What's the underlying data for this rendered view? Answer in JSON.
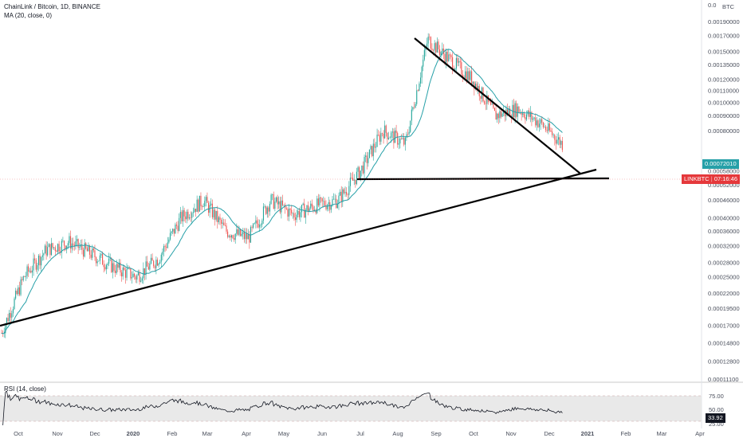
{
  "header": {
    "title": "ChainLink / Bitcoin, 1D, BINANCE",
    "ma_label": "MA (20, close, 0)"
  },
  "rsi": {
    "label": "RSI (14, close)",
    "levels": [
      "75.00",
      "50.00",
      "25.00"
    ],
    "current_value": "33.92"
  },
  "price_tags": {
    "ma_value": "0.00072010",
    "symbol": "LINKBTC",
    "countdown": "07:16:46",
    "ma_color": "#26a0a8",
    "symbol_color": "#e5383b"
  },
  "axis": {
    "currency": "BTC",
    "top_label": "0.0",
    "y_ticks": [
      "0.00190000",
      "0.00170000",
      "0.00150000",
      "0.00135000",
      "0.00120000",
      "0.00110000",
      "0.00100000",
      "0.00090000",
      "0.00080000",
      "0.00072010",
      "0.00058000",
      "0.00052000",
      "0.00046000",
      "0.00040000",
      "0.00036000",
      "0.00032000",
      "0.00028000",
      "0.00025000",
      "0.00022000",
      "0.00019500",
      "0.00017000",
      "0.00014800",
      "0.00012800",
      "0.00011100"
    ],
    "x_ticks": [
      "Oct",
      "Nov",
      "Dec",
      "2020",
      "Feb",
      "Mar",
      "Apr",
      "May",
      "Jun",
      "Jul",
      "Aug",
      "Sep",
      "Oct",
      "Nov",
      "Dec",
      "2021",
      "Feb",
      "Mar",
      "Apr"
    ]
  },
  "colors": {
    "up": "#26a69a",
    "down": "#ef5350",
    "ma": "#26a0a8",
    "trendline": "#000000",
    "rsi_line": "#131722",
    "rsi_band": "#e6e6e6"
  },
  "chart_data": {
    "type": "candlestick",
    "title": "ChainLink / Bitcoin, 1D, BINANCE",
    "x": [
      "Oct",
      "Nov",
      "Dec",
      "2020",
      "Feb",
      "Mar",
      "Apr",
      "May",
      "Jun",
      "Jul",
      "Aug",
      "Sep",
      "Oct",
      "Nov",
      "Dec"
    ],
    "price_path": [
      0.00016,
      0.00025,
      0.00031,
      0.00033,
      0.0003,
      0.00027,
      0.00025,
      0.00029,
      0.0004,
      0.00046,
      0.00036,
      0.00034,
      0.00046,
      0.00041,
      0.00044,
      0.00046,
      0.00058,
      0.0008,
      0.00072,
      0.00165,
      0.0014,
      0.0012,
      0.0009,
      0.00095,
      0.00085,
      0.00072
    ],
    "series": [
      {
        "name": "MA (20, close, 0)",
        "last": 0.0007201
      }
    ],
    "rsi": {
      "last": 33.92,
      "levels": [
        75,
        50,
        25
      ]
    },
    "ylim": [
      0.000111,
      0.0019
    ],
    "yscale": "log"
  }
}
